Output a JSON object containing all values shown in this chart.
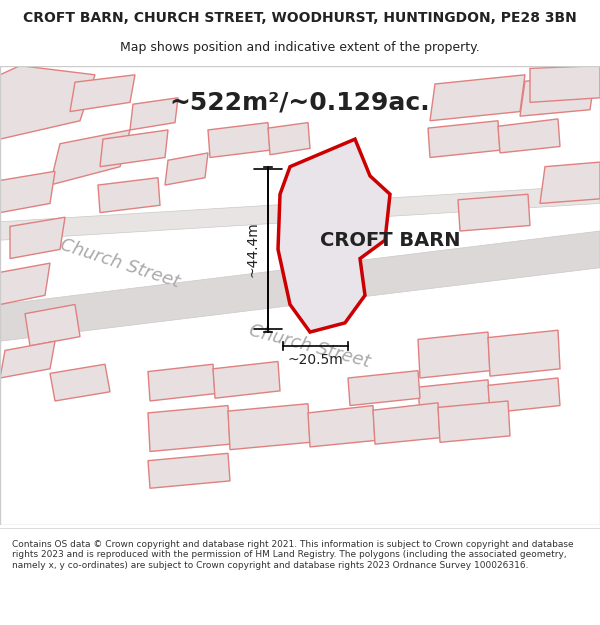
{
  "title_line1": "CROFT BARN, CHURCH STREET, WOODHURST, HUNTINGDON, PE28 3BN",
  "title_line2": "Map shows position and indicative extent of the property.",
  "area_label": "~522m²/~0.129ac.",
  "property_label": "CROFT BARN",
  "dim_vertical": "~44.4m",
  "dim_horizontal": "~20.5m",
  "street_label1": "Church Street",
  "street_label2": "Church Street",
  "footer": "Contains OS data © Crown copyright and database right 2021. This information is subject to Crown copyright and database rights 2023 and is reproduced with the permission of HM Land Registry. The polygons (including the associated geometry, namely x, y co-ordinates) are subject to Crown copyright and database rights 2023 Ordnance Survey 100026316.",
  "bg_color": "#f5f0f0",
  "map_bg": "#f8f4f4",
  "property_fill": "#e8e4ea",
  "property_edge": "#cc0000",
  "building_edge": "#e08080",
  "building_fill": "#e8e0e0",
  "road_color": "#ddd8d8",
  "text_color": "#222222",
  "street_text_color": "#aaaaaa",
  "title_fontsize": 10,
  "subtitle_fontsize": 9,
  "area_fontsize": 18,
  "property_label_fontsize": 14,
  "dim_fontsize": 10,
  "street_fontsize": 13,
  "footer_fontsize": 6.5
}
